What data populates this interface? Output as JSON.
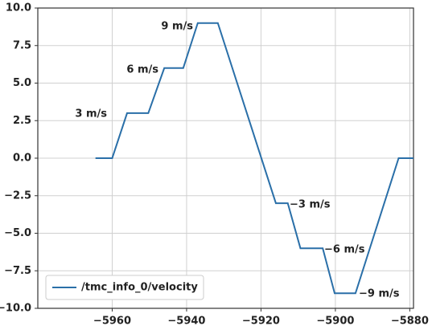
{
  "chart_data": {
    "type": "line",
    "x": [
      -5964.5,
      -5960,
      -5956,
      -5950.3,
      -5946,
      -5940.9,
      -5937,
      -5931.6,
      -5916,
      -5912.8,
      -5909.4,
      -5903.4,
      -5900.2,
      -5894.6,
      -5883,
      -5879
    ],
    "series": [
      {
        "name": "/tmc_info_0/velocity",
        "color": "#2a6fa8",
        "values": [
          0,
          0,
          3,
          3,
          6,
          6,
          9,
          9,
          -3,
          -3,
          -6,
          -6,
          -9,
          -9,
          0,
          0
        ]
      }
    ],
    "annotations": [
      "3 m/s",
      "6 m/s",
      "9 m/s",
      "−3 m/s",
      "−6 m/s",
      "−9 m/s"
    ],
    "xlim": [
      -5980,
      -5879
    ],
    "ylim": [
      -10,
      10
    ],
    "xticks": [
      {
        "value": -5960,
        "label": "−5960"
      },
      {
        "value": -5940,
        "label": "−5940"
      },
      {
        "value": -5920,
        "label": "−5920"
      },
      {
        "value": -5900,
        "label": "−5900"
      },
      {
        "value": -5880,
        "label": "−5880"
      }
    ],
    "yticks": [
      {
        "value": 10,
        "label": "10.0"
      },
      {
        "value": 7.5,
        "label": "7.5"
      },
      {
        "value": 5,
        "label": "5.0"
      },
      {
        "value": 2.5,
        "label": "2.5"
      },
      {
        "value": 0,
        "label": "0.0"
      },
      {
        "value": -2.5,
        "label": "−2.5"
      },
      {
        "value": -5,
        "label": "−5.0"
      },
      {
        "value": -7.5,
        "label": "−7.5"
      },
      {
        "value": -10,
        "label": "−10.0"
      }
    ],
    "grid": true,
    "legend": "lower left"
  }
}
